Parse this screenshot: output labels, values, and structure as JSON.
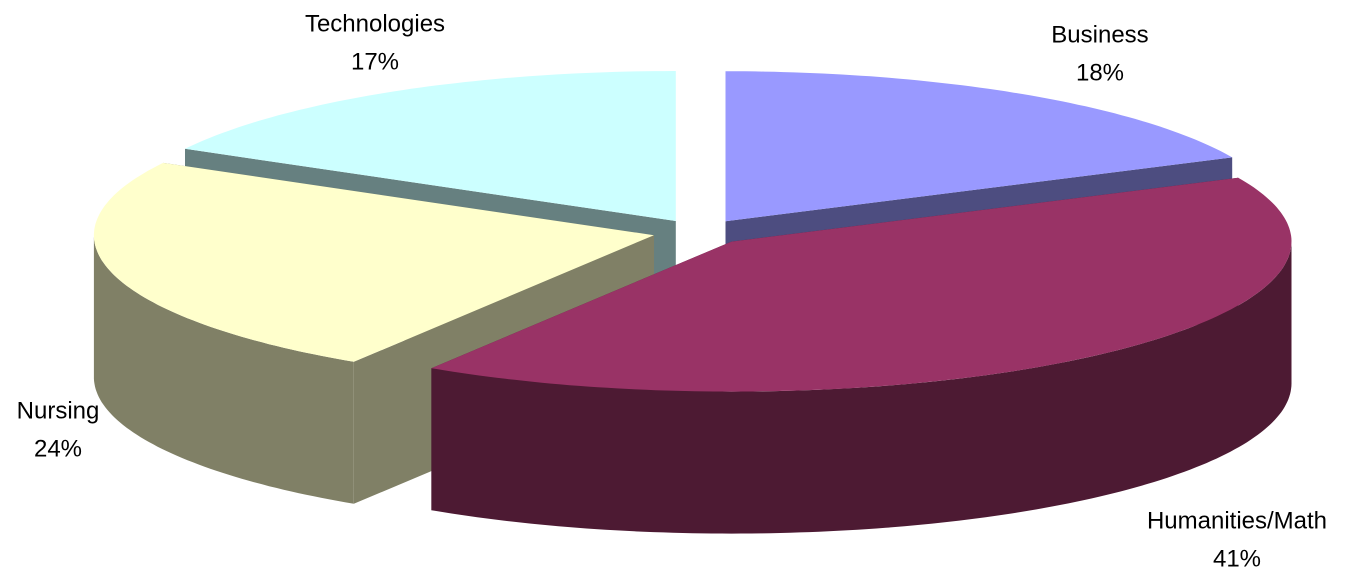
{
  "chart_data": {
    "type": "pie",
    "categories": [
      "Business",
      "Humanities/Math",
      "Nursing",
      "Technologies"
    ],
    "values": [
      18,
      41,
      24,
      17
    ],
    "value_labels": [
      "18%",
      "41%",
      "24%",
      "17%"
    ],
    "colors": [
      "#9999ff",
      "#993366",
      "#ffffcc",
      "#ccffff"
    ],
    "three_d": true,
    "exploded": true
  }
}
